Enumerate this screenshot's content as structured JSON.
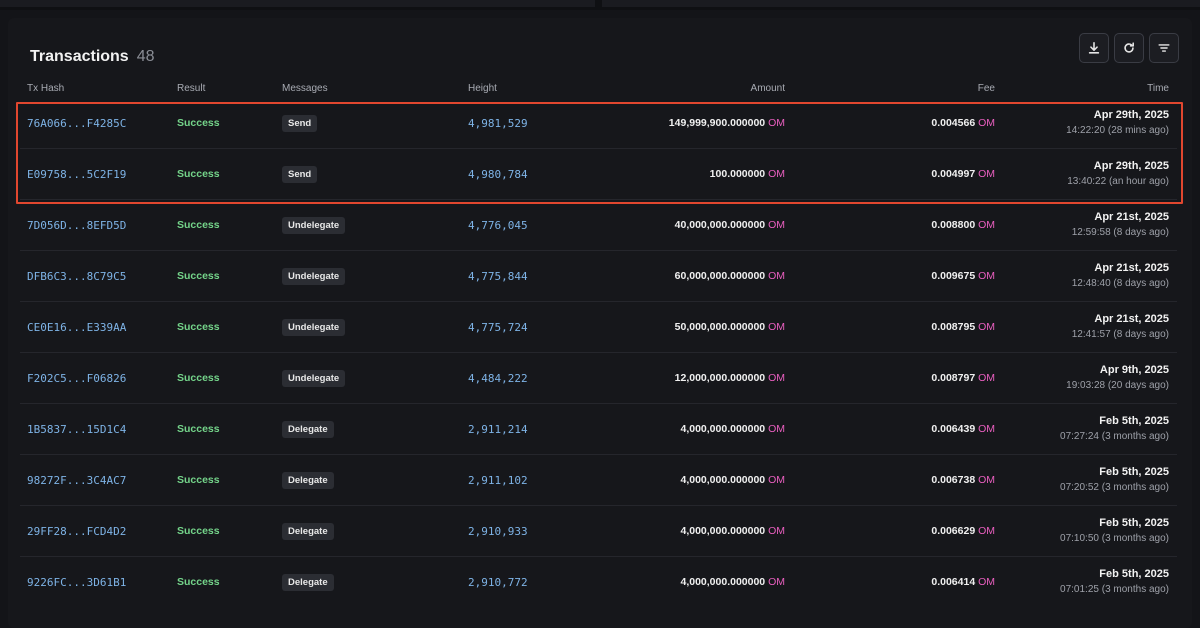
{
  "header": {
    "title": "Transactions",
    "count": "48"
  },
  "toolbar": [
    {
      "name": "download-button",
      "icon": "download-icon"
    },
    {
      "name": "refresh-button",
      "icon": "refresh-icon"
    },
    {
      "name": "filter-button",
      "icon": "filter-icon"
    }
  ],
  "columns": {
    "hash": "Tx Hash",
    "result": "Result",
    "messages": "Messages",
    "height": "Height",
    "amount": "Amount",
    "fee": "Fee",
    "time": "Time"
  },
  "colors": {
    "accent_denom": "#ea5fc0",
    "success": "#74d48a",
    "link": "#7eb3e6",
    "highlight": "#e1472f"
  },
  "rows": [
    {
      "hash": "76A066...F4285C",
      "result": "Success",
      "message": "Send",
      "height": "4,981,529",
      "amount": "149,999,900.000000",
      "amount_denom": "OM",
      "fee": "0.004566",
      "fee_denom": "OM",
      "date": "Apr 29th, 2025",
      "time": "14:22:20 (28 mins ago)"
    },
    {
      "hash": "E09758...5C2F19",
      "result": "Success",
      "message": "Send",
      "height": "4,980,784",
      "amount": "100.000000",
      "amount_denom": "OM",
      "fee": "0.004997",
      "fee_denom": "OM",
      "date": "Apr 29th, 2025",
      "time": "13:40:22 (an hour ago)"
    },
    {
      "hash": "7D056D...8EFD5D",
      "result": "Success",
      "message": "Undelegate",
      "height": "4,776,045",
      "amount": "40,000,000.000000",
      "amount_denom": "OM",
      "fee": "0.008800",
      "fee_denom": "OM",
      "date": "Apr 21st, 2025",
      "time": "12:59:58 (8 days ago)"
    },
    {
      "hash": "DFB6C3...8C79C5",
      "result": "Success",
      "message": "Undelegate",
      "height": "4,775,844",
      "amount": "60,000,000.000000",
      "amount_denom": "OM",
      "fee": "0.009675",
      "fee_denom": "OM",
      "date": "Apr 21st, 2025",
      "time": "12:48:40 (8 days ago)"
    },
    {
      "hash": "CE0E16...E339AA",
      "result": "Success",
      "message": "Undelegate",
      "height": "4,775,724",
      "amount": "50,000,000.000000",
      "amount_denom": "OM",
      "fee": "0.008795",
      "fee_denom": "OM",
      "date": "Apr 21st, 2025",
      "time": "12:41:57 (8 days ago)"
    },
    {
      "hash": "F202C5...F06826",
      "result": "Success",
      "message": "Undelegate",
      "height": "4,484,222",
      "amount": "12,000,000.000000",
      "amount_denom": "OM",
      "fee": "0.008797",
      "fee_denom": "OM",
      "date": "Apr 9th, 2025",
      "time": "19:03:28 (20 days ago)"
    },
    {
      "hash": "1B5837...15D1C4",
      "result": "Success",
      "message": "Delegate",
      "height": "2,911,214",
      "amount": "4,000,000.000000",
      "amount_denom": "OM",
      "fee": "0.006439",
      "fee_denom": "OM",
      "date": "Feb 5th, 2025",
      "time": "07:27:24 (3 months ago)"
    },
    {
      "hash": "98272F...3C4AC7",
      "result": "Success",
      "message": "Delegate",
      "height": "2,911,102",
      "amount": "4,000,000.000000",
      "amount_denom": "OM",
      "fee": "0.006738",
      "fee_denom": "OM",
      "date": "Feb 5th, 2025",
      "time": "07:20:52 (3 months ago)"
    },
    {
      "hash": "29FF28...FCD4D2",
      "result": "Success",
      "message": "Delegate",
      "height": "2,910,933",
      "amount": "4,000,000.000000",
      "amount_denom": "OM",
      "fee": "0.006629",
      "fee_denom": "OM",
      "date": "Feb 5th, 2025",
      "time": "07:10:50 (3 months ago)"
    },
    {
      "hash": "9226FC...3D61B1",
      "result": "Success",
      "message": "Delegate",
      "height": "2,910,772",
      "amount": "4,000,000.000000",
      "amount_denom": "OM",
      "fee": "0.006414",
      "fee_denom": "OM",
      "date": "Feb 5th, 2025",
      "time": "07:01:25 (3 months ago)"
    }
  ]
}
